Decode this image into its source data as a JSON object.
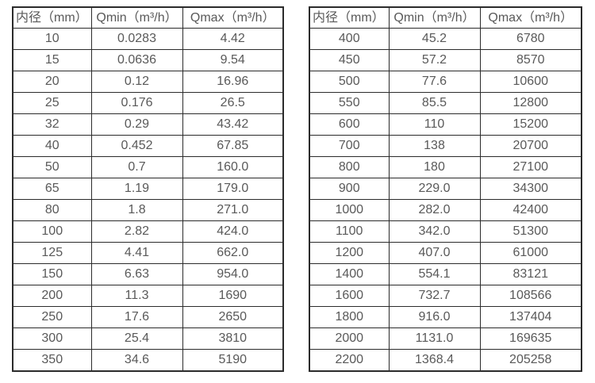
{
  "page": {
    "background_color": "#ffffff",
    "border_color": "#2b2b2b",
    "text_color": "#595959"
  },
  "chart_data": [
    {
      "type": "table",
      "title": "",
      "columns": [
        "内径（mm）",
        "Qmin（m³/h）",
        "Qmax（m³/h）"
      ],
      "rows": [
        [
          "10",
          "0.0283",
          "4.42"
        ],
        [
          "15",
          "0.0636",
          "9.54"
        ],
        [
          "20",
          "0.12",
          "16.96"
        ],
        [
          "25",
          "0.176",
          "26.5"
        ],
        [
          "32",
          "0.29",
          "43.42"
        ],
        [
          "40",
          "0.452",
          "67.85"
        ],
        [
          "50",
          "0.7",
          "160.0"
        ],
        [
          "65",
          "1.19",
          "179.0"
        ],
        [
          "80",
          "1.8",
          "271.0"
        ],
        [
          "100",
          "2.82",
          "424.0"
        ],
        [
          "125",
          "4.41",
          "662.0"
        ],
        [
          "150",
          "6.63",
          "954.0"
        ],
        [
          "200",
          "11.3",
          "1690"
        ],
        [
          "250",
          "17.6",
          "2650"
        ],
        [
          "300",
          "25.4",
          "3810"
        ],
        [
          "350",
          "34.6",
          "5190"
        ]
      ]
    },
    {
      "type": "table",
      "title": "",
      "columns": [
        "内径（mm）",
        "Qmin（m³/h）",
        "Qmax（m³/h）"
      ],
      "rows": [
        [
          "400",
          "45.2",
          "6780"
        ],
        [
          "450",
          "57.2",
          "8570"
        ],
        [
          "500",
          "77.6",
          "10600"
        ],
        [
          "550",
          "85.5",
          "12800"
        ],
        [
          "600",
          "110",
          "15200"
        ],
        [
          "700",
          "138",
          "20700"
        ],
        [
          "800",
          "180",
          "27100"
        ],
        [
          "900",
          "229.0",
          "34300"
        ],
        [
          "1000",
          "282.0",
          "42400"
        ],
        [
          "1100",
          "342.0",
          "51300"
        ],
        [
          "1200",
          "407.0",
          "61000"
        ],
        [
          "1400",
          "554.1",
          "83121"
        ],
        [
          "1600",
          "732.7",
          "108566"
        ],
        [
          "1800",
          "916.0",
          "137404"
        ],
        [
          "2000",
          "1131.0",
          "169635"
        ],
        [
          "2200",
          "1368.4",
          "205258"
        ]
      ]
    }
  ]
}
